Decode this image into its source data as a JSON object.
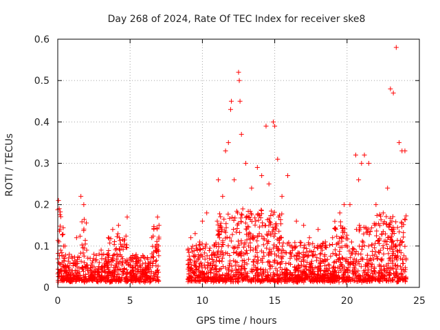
{
  "chart_data": {
    "type": "scatter",
    "title": "Day 268 of 2024, Rate Of TEC Index for receiver ske8",
    "xlabel": "GPS time / hours",
    "ylabel": "ROTI / TECUs",
    "xlim": [
      0,
      25
    ],
    "ylim": [
      0,
      0.6
    ],
    "xticks": [
      0,
      5,
      10,
      15,
      20,
      25
    ],
    "yticks": [
      0,
      0.1,
      0.2,
      0.3,
      0.4,
      0.5,
      0.6
    ],
    "xtick_labels": [
      "0",
      "5",
      "10",
      "15",
      "20",
      "25"
    ],
    "ytick_labels": [
      "0",
      "0.1",
      "0.2",
      "0.3",
      "0.4",
      "0.5",
      "0.6"
    ],
    "grid": true,
    "marker": "+",
    "color": "#ff0000",
    "series": [
      {
        "name": "ROTI",
        "x": [
          0.05,
          0.1,
          0.15,
          0.2,
          0.3,
          0.5,
          0.8,
          1.0,
          1.3,
          1.6,
          1.8,
          2.0,
          2.5,
          3.0,
          3.5,
          3.8,
          4.2,
          4.5,
          4.8,
          5.0,
          5.5,
          6.0,
          6.5,
          6.9,
          7.0,
          9.0,
          9.2,
          9.5,
          10.0,
          10.3,
          10.8,
          11.1,
          11.4,
          11.6,
          11.8,
          11.95,
          12.0,
          12.2,
          12.5,
          12.55,
          12.6,
          12.7,
          13.0,
          13.4,
          13.8,
          14.1,
          14.4,
          14.6,
          14.9,
          15.0,
          15.2,
          15.5,
          15.9,
          16.5,
          17.0,
          17.4,
          18.0,
          18.5,
          19.0,
          19.5,
          19.8,
          20.2,
          20.6,
          20.8,
          21.0,
          21.2,
          21.5,
          22.0,
          22.5,
          22.8,
          23.0,
          23.2,
          23.4,
          23.6,
          23.8,
          24.0
        ],
        "y": [
          0.21,
          0.19,
          0.14,
          0.09,
          0.06,
          0.1,
          0.08,
          0.07,
          0.12,
          0.22,
          0.2,
          0.09,
          0.08,
          0.09,
          0.12,
          0.14,
          0.15,
          0.1,
          0.17,
          0.07,
          0.06,
          0.07,
          0.12,
          0.17,
          0.15,
          0.09,
          0.12,
          0.13,
          0.16,
          0.18,
          0.1,
          0.26,
          0.22,
          0.33,
          0.35,
          0.43,
          0.45,
          0.26,
          0.52,
          0.5,
          0.45,
          0.37,
          0.3,
          0.24,
          0.29,
          0.27,
          0.39,
          0.25,
          0.4,
          0.39,
          0.31,
          0.22,
          0.27,
          0.16,
          0.15,
          0.12,
          0.14,
          0.11,
          0.12,
          0.18,
          0.2,
          0.2,
          0.32,
          0.26,
          0.3,
          0.32,
          0.3,
          0.2,
          0.18,
          0.24,
          0.48,
          0.47,
          0.58,
          0.35,
          0.33,
          0.33
        ]
      }
    ],
    "gaps": [
      [
        7.0,
        9.0
      ]
    ]
  }
}
